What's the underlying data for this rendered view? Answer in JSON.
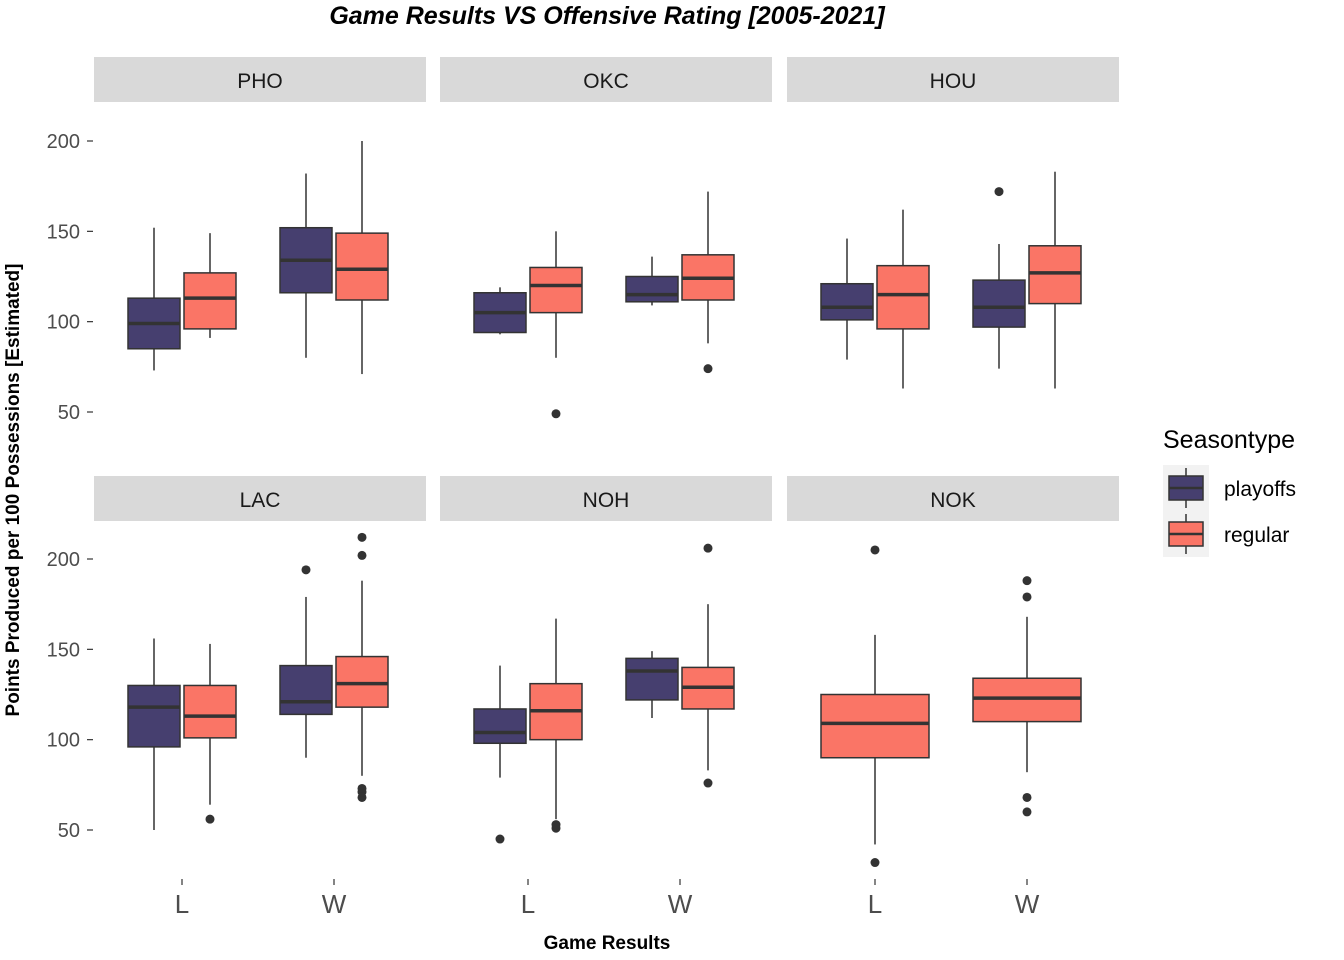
{
  "chart_data": {
    "type": "boxplot",
    "title": "Game Results  VS  Offensive Rating [2005-2021]",
    "xlabel": "Game Results",
    "ylabel": "Points Produced per 100 Possessions [Estimated]",
    "categories": [
      "L",
      "W"
    ],
    "yticks": [
      50,
      100,
      150,
      200
    ],
    "legend": {
      "title": "Seasontype",
      "position": "right",
      "entries": [
        {
          "label": "playoffs",
          "color": "#463f6f"
        },
        {
          "label": "regular",
          "color": "#fa7566"
        }
      ]
    },
    "panels": [
      {
        "name": "PHO",
        "groups": [
          {
            "category": "L",
            "seasontype": "playoffs",
            "min": 73,
            "q1": 85,
            "median": 99,
            "q3": 113,
            "max": 152,
            "outliers": []
          },
          {
            "category": "L",
            "seasontype": "regular",
            "min": 91,
            "q1": 96,
            "median": 113,
            "q3": 127,
            "max": 149,
            "outliers": []
          },
          {
            "category": "W",
            "seasontype": "playoffs",
            "min": 80,
            "q1": 116,
            "median": 134,
            "q3": 152,
            "max": 182,
            "outliers": []
          },
          {
            "category": "W",
            "seasontype": "regular",
            "min": 71,
            "q1": 112,
            "median": 129,
            "q3": 149,
            "max": 200,
            "outliers": []
          }
        ]
      },
      {
        "name": "OKC",
        "groups": [
          {
            "category": "L",
            "seasontype": "playoffs",
            "min": 93,
            "q1": 94,
            "median": 105,
            "q3": 116,
            "max": 119,
            "outliers": []
          },
          {
            "category": "L",
            "seasontype": "regular",
            "min": 80,
            "q1": 105,
            "median": 120,
            "q3": 130,
            "max": 150,
            "outliers": [
              49
            ]
          },
          {
            "category": "W",
            "seasontype": "playoffs",
            "min": 109,
            "q1": 111,
            "median": 115,
            "q3": 125,
            "max": 136,
            "outliers": []
          },
          {
            "category": "W",
            "seasontype": "regular",
            "min": 88,
            "q1": 112,
            "median": 124,
            "q3": 137,
            "max": 172,
            "outliers": [
              74
            ]
          }
        ]
      },
      {
        "name": "HOU",
        "groups": [
          {
            "category": "L",
            "seasontype": "playoffs",
            "min": 79,
            "q1": 101,
            "median": 108,
            "q3": 121,
            "max": 146,
            "outliers": []
          },
          {
            "category": "L",
            "seasontype": "regular",
            "min": 63,
            "q1": 96,
            "median": 115,
            "q3": 131,
            "max": 162,
            "outliers": []
          },
          {
            "category": "W",
            "seasontype": "playoffs",
            "min": 74,
            "q1": 97,
            "median": 108,
            "q3": 123,
            "max": 143,
            "outliers": [
              172
            ]
          },
          {
            "category": "W",
            "seasontype": "regular",
            "min": 63,
            "q1": 110,
            "median": 127,
            "q3": 142,
            "max": 183,
            "outliers": []
          }
        ]
      },
      {
        "name": "LAC",
        "groups": [
          {
            "category": "L",
            "seasontype": "playoffs",
            "min": 50,
            "q1": 96,
            "median": 118,
            "q3": 130,
            "max": 156,
            "outliers": []
          },
          {
            "category": "L",
            "seasontype": "regular",
            "min": 64,
            "q1": 101,
            "median": 113,
            "q3": 130,
            "max": 153,
            "outliers": [
              56
            ]
          },
          {
            "category": "W",
            "seasontype": "playoffs",
            "min": 90,
            "q1": 114,
            "median": 121,
            "q3": 141,
            "max": 179,
            "outliers": [
              194
            ]
          },
          {
            "category": "W",
            "seasontype": "regular",
            "min": 80,
            "q1": 118,
            "median": 131,
            "q3": 146,
            "max": 188,
            "outliers": [
              68,
              71,
              73,
              202,
              212
            ]
          }
        ]
      },
      {
        "name": "NOH",
        "groups": [
          {
            "category": "L",
            "seasontype": "playoffs",
            "min": 79,
            "q1": 98,
            "median": 104,
            "q3": 117,
            "max": 141,
            "outliers": [
              45
            ]
          },
          {
            "category": "L",
            "seasontype": "regular",
            "min": 56,
            "q1": 100,
            "median": 116,
            "q3": 131,
            "max": 167,
            "outliers": [
              51,
              53
            ]
          },
          {
            "category": "W",
            "seasontype": "playoffs",
            "min": 112,
            "q1": 122,
            "median": 138,
            "q3": 145,
            "max": 149,
            "outliers": []
          },
          {
            "category": "W",
            "seasontype": "regular",
            "min": 83,
            "q1": 117,
            "median": 129,
            "q3": 140,
            "max": 175,
            "outliers": [
              76,
              206
            ]
          }
        ]
      },
      {
        "name": "NOK",
        "groups": [
          {
            "category": "L",
            "seasontype": "regular",
            "min": 42,
            "q1": 90,
            "median": 109,
            "q3": 125,
            "max": 158,
            "outliers": [
              32,
              205
            ]
          },
          {
            "category": "W",
            "seasontype": "regular",
            "min": 82,
            "q1": 110,
            "median": 123,
            "q3": 134,
            "max": 168,
            "outliers": [
              60,
              68,
              179,
              188
            ]
          }
        ]
      }
    ]
  }
}
